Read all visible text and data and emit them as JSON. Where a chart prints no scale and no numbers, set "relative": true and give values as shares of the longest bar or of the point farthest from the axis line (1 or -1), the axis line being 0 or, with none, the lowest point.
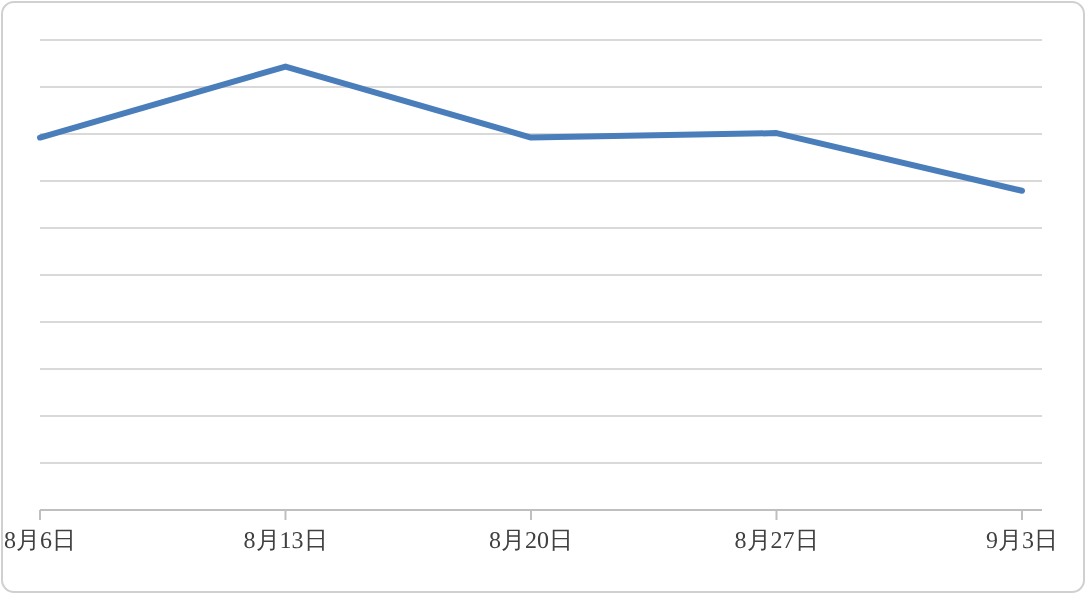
{
  "chart_data": {
    "type": "line",
    "relative": true,
    "categories": [
      "8月6日",
      "8月13日",
      "8月20日",
      "8月27日",
      "9月3日"
    ],
    "series": [
      {
        "color": "#4a7ebb",
        "values": [
          0.84,
          1,
          0.84,
          0.85,
          0.72
        ]
      }
    ],
    "grid": "y",
    "marker": "none",
    "line_style": "solid"
  }
}
